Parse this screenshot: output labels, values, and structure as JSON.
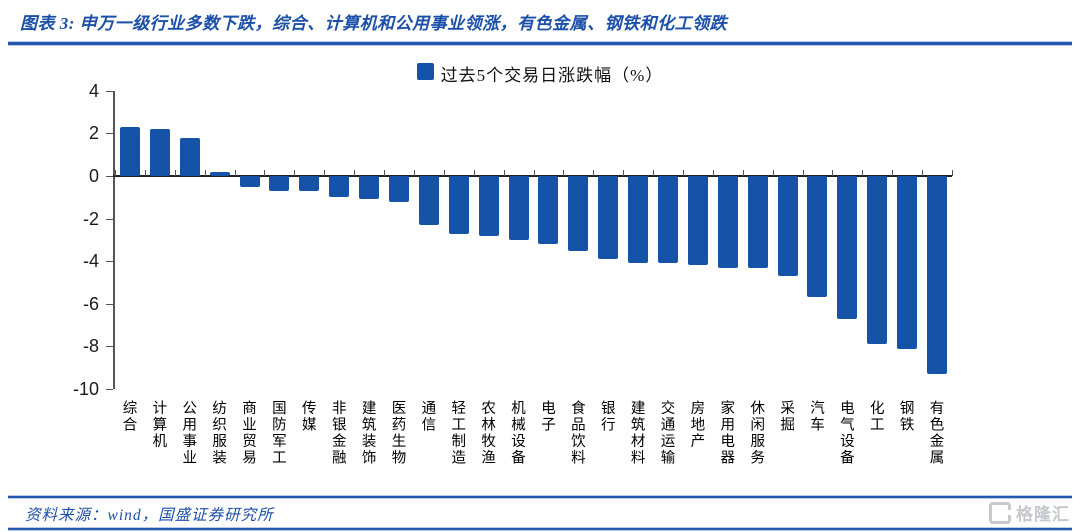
{
  "header": {
    "title": "图表 3: 申万一级行业多数下跌，综合、计算机和公用事业领涨，有色金属、钢铁和化工领跌"
  },
  "chart_data": {
    "type": "bar",
    "title": "过去5个交易日涨跌幅（%）",
    "legend_entries": [
      "过去5个交易日涨跌幅（%）"
    ],
    "legend_position": "top-center",
    "categories": [
      "综合",
      "计算机",
      "公用事业",
      "纺织服装",
      "商业贸易",
      "国防军工",
      "传媒",
      "非银金融",
      "建筑装饰",
      "医药生物",
      "通信",
      "轻工制造",
      "农林牧渔",
      "机械设备",
      "电子",
      "食品饮料",
      "银行",
      "建筑材料",
      "交通运输",
      "房地产",
      "家用电器",
      "休闲服务",
      "采掘",
      "汽车",
      "电气设备",
      "化工",
      "钢铁",
      "有色金属"
    ],
    "values": [
      2.3,
      2.2,
      1.8,
      0.2,
      -0.5,
      -0.7,
      -0.7,
      -1.0,
      -1.1,
      -1.2,
      -2.3,
      -2.7,
      -2.8,
      -3.0,
      -3.2,
      -3.5,
      -3.9,
      -4.1,
      -4.1,
      -4.2,
      -4.3,
      -4.3,
      -4.7,
      -5.7,
      -6.7,
      -7.9,
      -8.1,
      -9.3
    ],
    "ylim": [
      -10,
      4
    ],
    "yticks": [
      4,
      2,
      0,
      -2,
      -4,
      -6,
      -8,
      -10
    ],
    "grid": false,
    "bar_color": "#1553a8"
  },
  "footer": {
    "source": "资料来源：wind，国盛证券研究所"
  },
  "watermark": {
    "icon": "G",
    "brand": "格隆汇"
  },
  "colors": {
    "accent_blue": "#1c50a8",
    "bar_blue": "#1553a8",
    "rule_blue": "#2356ad",
    "axis_gray": "#555555",
    "watermark_gray": "#c5c8cc"
  }
}
